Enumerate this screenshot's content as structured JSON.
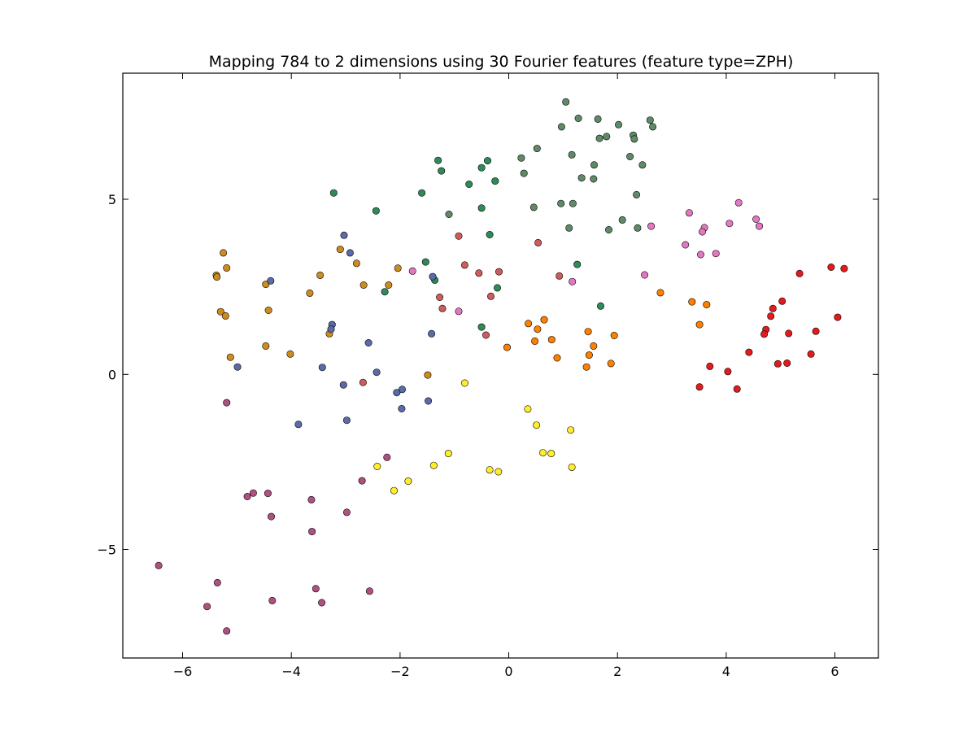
{
  "chart_data": {
    "type": "scatter",
    "title": "Mapping 784 to 2 dimensions using 30 Fourier features (feature type=ZPH)",
    "xlabel": "",
    "ylabel": "",
    "xlim": [
      -7.1,
      6.8
    ],
    "ylim": [
      -8.1,
      8.6
    ],
    "xticks": [
      -6,
      -4,
      -2,
      0,
      2,
      4,
      6
    ],
    "xtick_labels": [
      "−6",
      "−4",
      "−2",
      "0",
      "2",
      "4",
      "6"
    ],
    "yticks": [
      -5,
      0,
      5
    ],
    "ytick_labels": [
      "−5",
      "0",
      "5"
    ],
    "grid": false,
    "legend": "none",
    "series": [
      {
        "color": "#e41a1c",
        "points": [
          [
            5.35,
            2.88
          ],
          [
            5.93,
            3.06
          ],
          [
            6.17,
            3.02
          ],
          [
            6.05,
            1.63
          ],
          [
            5.65,
            1.23
          ],
          [
            5.15,
            1.17
          ],
          [
            5.03,
            2.09
          ],
          [
            4.86,
            1.88
          ],
          [
            4.82,
            1.66
          ],
          [
            4.73,
            1.28
          ],
          [
            4.7,
            1.15
          ],
          [
            4.42,
            0.63
          ],
          [
            4.03,
            0.08
          ],
          [
            3.7,
            0.23
          ],
          [
            3.51,
            -0.36
          ],
          [
            4.2,
            -0.42
          ],
          [
            4.95,
            0.3
          ],
          [
            5.12,
            0.32
          ],
          [
            5.56,
            0.58
          ]
        ]
      },
      {
        "color": "#ff7f00",
        "points": [
          [
            2.79,
            2.33
          ],
          [
            3.37,
            2.07
          ],
          [
            3.64,
            1.99
          ],
          [
            3.51,
            1.42
          ],
          [
            0.36,
            1.45
          ],
          [
            0.65,
            1.56
          ],
          [
            0.53,
            1.29
          ],
          [
            0.48,
            0.95
          ],
          [
            0.79,
            0.99
          ],
          [
            1.46,
            1.22
          ],
          [
            1.94,
            1.11
          ],
          [
            1.56,
            0.81
          ],
          [
            1.48,
            0.55
          ],
          [
            0.89,
            0.47
          ],
          [
            1.43,
            0.21
          ],
          [
            1.88,
            0.31
          ],
          [
            -0.03,
            0.77
          ]
        ]
      },
      {
        "color": "#ffed2a",
        "points": [
          [
            -0.81,
            -0.25
          ],
          [
            0.35,
            -0.99
          ],
          [
            0.51,
            -1.45
          ],
          [
            1.14,
            -1.59
          ],
          [
            0.63,
            -2.24
          ],
          [
            0.78,
            -2.26
          ],
          [
            1.16,
            -2.65
          ],
          [
            -0.35,
            -2.73
          ],
          [
            -0.19,
            -2.78
          ],
          [
            -1.11,
            -2.26
          ],
          [
            -1.38,
            -2.6
          ],
          [
            -2.42,
            -2.63
          ],
          [
            -2.11,
            -3.32
          ],
          [
            -1.85,
            -3.05
          ]
        ]
      },
      {
        "color": "#e377c2",
        "points": [
          [
            2.62,
            4.23
          ],
          [
            3.32,
            4.61
          ],
          [
            3.6,
            4.19
          ],
          [
            3.56,
            4.07
          ],
          [
            4.06,
            4.31
          ],
          [
            4.23,
            4.9
          ],
          [
            4.55,
            4.43
          ],
          [
            4.61,
            4.23
          ],
          [
            3.25,
            3.7
          ],
          [
            3.53,
            3.42
          ],
          [
            3.81,
            3.45
          ],
          [
            2.5,
            2.84
          ],
          [
            1.17,
            2.65
          ],
          [
            -1.77,
            2.95
          ],
          [
            -0.92,
            1.8
          ]
        ]
      },
      {
        "color": "#cd5c5c",
        "points": [
          [
            -0.92,
            3.95
          ],
          [
            0.54,
            3.76
          ],
          [
            -0.81,
            3.12
          ],
          [
            -0.55,
            2.89
          ],
          [
            -0.18,
            2.93
          ],
          [
            0.93,
            2.81
          ],
          [
            -1.27,
            2.2
          ],
          [
            -1.22,
            1.88
          ],
          [
            -0.33,
            2.23
          ],
          [
            -0.42,
            1.12
          ],
          [
            -2.68,
            -0.23
          ]
        ]
      },
      {
        "color": "#2e8b57",
        "points": [
          [
            -3.22,
            5.18
          ],
          [
            -2.44,
            4.67
          ],
          [
            -1.6,
            5.18
          ],
          [
            -1.3,
            6.11
          ],
          [
            -1.24,
            5.81
          ],
          [
            -0.73,
            5.43
          ],
          [
            -0.5,
            5.9
          ],
          [
            -0.39,
            6.1
          ],
          [
            -0.25,
            5.52
          ],
          [
            -0.5,
            4.75
          ],
          [
            -0.35,
            3.99
          ],
          [
            -1.53,
            3.21
          ],
          [
            -1.36,
            2.69
          ],
          [
            -2.28,
            2.36
          ],
          [
            -0.21,
            2.47
          ],
          [
            -0.5,
            1.35
          ],
          [
            1.26,
            3.14
          ],
          [
            1.69,
            1.95
          ]
        ]
      },
      {
        "color": "#5f8a65",
        "points": [
          [
            1.05,
            7.78
          ],
          [
            0.97,
            7.07
          ],
          [
            1.28,
            7.31
          ],
          [
            1.64,
            7.29
          ],
          [
            2.02,
            7.13
          ],
          [
            2.6,
            7.26
          ],
          [
            2.65,
            7.07
          ],
          [
            1.67,
            6.74
          ],
          [
            1.8,
            6.79
          ],
          [
            2.29,
            6.83
          ],
          [
            2.31,
            6.72
          ],
          [
            1.16,
            6.27
          ],
          [
            2.23,
            6.22
          ],
          [
            2.46,
            5.98
          ],
          [
            1.57,
            5.98
          ],
          [
            0.23,
            6.18
          ],
          [
            0.52,
            6.45
          ],
          [
            0.28,
            5.74
          ],
          [
            1.34,
            5.61
          ],
          [
            1.56,
            5.58
          ],
          [
            2.35,
            5.13
          ],
          [
            0.96,
            4.88
          ],
          [
            1.18,
            4.88
          ],
          [
            0.46,
            4.77
          ],
          [
            -1.1,
            4.57
          ],
          [
            1.11,
            4.18
          ],
          [
            2.09,
            4.41
          ],
          [
            1.84,
            4.13
          ],
          [
            2.37,
            4.18
          ]
        ]
      },
      {
        "color": "#cd8c1f",
        "points": [
          [
            -5.25,
            3.47
          ],
          [
            -5.19,
            3.04
          ],
          [
            -5.38,
            2.83
          ],
          [
            -5.37,
            2.78
          ],
          [
            -4.47,
            2.57
          ],
          [
            -3.1,
            3.57
          ],
          [
            -2.8,
            3.17
          ],
          [
            -3.47,
            2.83
          ],
          [
            -3.66,
            2.32
          ],
          [
            -2.67,
            2.55
          ],
          [
            -2.21,
            2.55
          ],
          [
            -2.04,
            3.03
          ],
          [
            -5.3,
            1.79
          ],
          [
            -5.21,
            1.67
          ],
          [
            -4.42,
            1.83
          ],
          [
            -3.3,
            1.16
          ],
          [
            -4.02,
            0.58
          ],
          [
            -4.47,
            0.81
          ],
          [
            -5.12,
            0.49
          ],
          [
            -1.49,
            -0.02
          ]
        ]
      },
      {
        "color": "#5b6aa8",
        "points": [
          [
            -3.03,
            3.97
          ],
          [
            -2.92,
            3.47
          ],
          [
            -4.38,
            2.67
          ],
          [
            -3.25,
            1.42
          ],
          [
            -3.27,
            1.29
          ],
          [
            -1.42,
            1.16
          ],
          [
            -3.43,
            0.2
          ],
          [
            -4.99,
            0.21
          ],
          [
            -2.58,
            0.9
          ],
          [
            -2.43,
            0.06
          ],
          [
            -3.04,
            -0.3
          ],
          [
            -1.96,
            -0.43
          ],
          [
            -2.06,
            -0.52
          ],
          [
            -1.48,
            -0.76
          ],
          [
            -1.97,
            -0.98
          ],
          [
            -2.98,
            -1.31
          ],
          [
            -3.87,
            -1.43
          ],
          [
            -1.4,
            2.79
          ]
        ]
      },
      {
        "color": "#b05080",
        "points": [
          [
            -5.19,
            -0.81
          ],
          [
            -2.24,
            -2.37
          ],
          [
            -2.7,
            -3.04
          ],
          [
            -4.81,
            -3.49
          ],
          [
            -4.7,
            -3.39
          ],
          [
            -4.43,
            -3.4
          ],
          [
            -3.63,
            -3.58
          ],
          [
            -4.37,
            -4.06
          ],
          [
            -2.98,
            -3.94
          ],
          [
            -3.62,
            -4.49
          ],
          [
            -6.44,
            -5.46
          ],
          [
            -5.36,
            -5.95
          ],
          [
            -5.55,
            -6.63
          ],
          [
            -5.19,
            -7.33
          ],
          [
            -4.35,
            -6.46
          ],
          [
            -3.55,
            -6.12
          ],
          [
            -3.44,
            -6.52
          ],
          [
            -2.56,
            -6.19
          ]
        ]
      }
    ]
  }
}
